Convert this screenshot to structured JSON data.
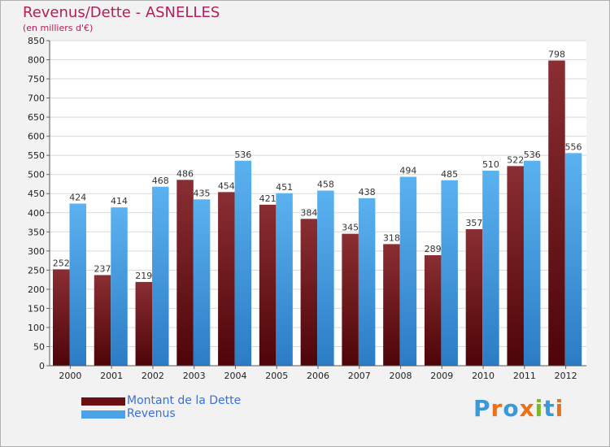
{
  "header": {
    "title": "Revenus/Dette - ASNELLES",
    "subtitle": "(en milliers d'€)"
  },
  "chart_data": {
    "type": "bar",
    "title": "Revenus/Dette - ASNELLES",
    "ylabel": "(en milliers d'€)",
    "xlabel": "",
    "categories": [
      "2000",
      "2001",
      "2002",
      "2003",
      "2004",
      "2005",
      "2006",
      "2007",
      "2008",
      "2009",
      "2010",
      "2011",
      "2012"
    ],
    "series": [
      {
        "name": "Montant de la Dette",
        "color": "#7a1f24",
        "values": [
          252,
          237,
          219,
          486,
          454,
          421,
          384,
          345,
          318,
          289,
          357,
          522,
          798
        ]
      },
      {
        "name": "Revenus",
        "color": "#4a9fe0",
        "values": [
          424,
          414,
          468,
          435,
          536,
          451,
          458,
          438,
          494,
          485,
          510,
          536,
          556
        ]
      }
    ],
    "ylim": [
      0,
      850
    ],
    "ytick_step": 50,
    "grid": true,
    "legend_position": "bottom-left"
  },
  "legend": {
    "items": [
      {
        "label": "Montant de la Dette",
        "color": "#6b0f14"
      },
      {
        "label": "Revenus",
        "color": "#4aa3e8"
      }
    ]
  },
  "logo": {
    "letters": [
      {
        "ch": "P",
        "color": "#3a9ad9"
      },
      {
        "ch": "r",
        "color": "#e8721c"
      },
      {
        "ch": "o",
        "color": "#3a9ad9"
      },
      {
        "ch": "x",
        "color": "#e8721c"
      },
      {
        "ch": "i",
        "color": "#7bb832"
      },
      {
        "ch": "t",
        "color": "#3a9ad9"
      },
      {
        "ch": "i",
        "color": "#e8721c"
      }
    ]
  }
}
